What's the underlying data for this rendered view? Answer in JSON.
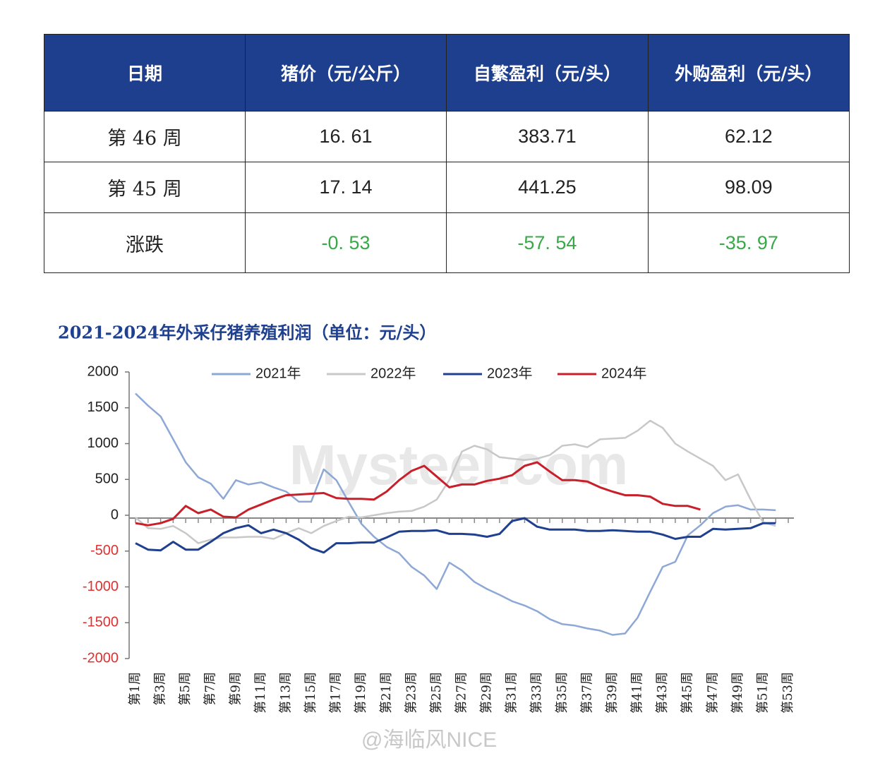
{
  "table": {
    "header": [
      "日期",
      "猪价（元/公斤）",
      "自繁盈利（元/头）",
      "外购盈利（元/头）"
    ],
    "rows": [
      [
        "第 46 周",
        "16. 61",
        "383.71",
        "62.12"
      ],
      [
        "第 45 周",
        "17. 14",
        "441.25",
        "98.09"
      ],
      [
        "涨跌",
        "-0. 53",
        "-57. 54",
        "-35. 97"
      ]
    ],
    "header_color": "#1e3e8e",
    "change_color": "#3aa84a"
  },
  "chart_data": {
    "type": "line",
    "title": "2021-2024年外采仔猪养殖利润（单位：元/头）",
    "categories": [
      "第1周",
      null,
      "第3周",
      null,
      "第5周",
      null,
      "第7周",
      null,
      "第9周",
      null,
      "第11周",
      null,
      "第13周",
      null,
      "第15周",
      null,
      "第17周",
      null,
      "第19周",
      null,
      "第21周",
      null,
      "第23周",
      null,
      "第25周",
      null,
      "第27周",
      null,
      "第29周",
      null,
      "第31周",
      null,
      "第33周",
      null,
      "第35周",
      null,
      "第37周",
      null,
      "第39周",
      null,
      "第41周",
      null,
      "第43周",
      null,
      "第45周",
      null,
      "第47周",
      null,
      "第49周",
      null,
      "第51周",
      null,
      "第53周"
    ],
    "series": [
      {
        "name": "2021年",
        "color": "#8ea8d6",
        "values": [
          1700,
          1530,
          1380,
          1060,
          740,
          530,
          440,
          230,
          490,
          430,
          460,
          390,
          330,
          190,
          190,
          640,
          490,
          180,
          -120,
          -300,
          -440,
          -530,
          -720,
          -840,
          -1030,
          -660,
          -770,
          -930,
          -1030,
          -1110,
          -1200,
          -1260,
          -1340,
          -1450,
          -1520,
          -1540,
          -1580,
          -1610,
          -1670,
          -1650,
          -1430,
          -1070,
          -720,
          -650,
          -280,
          -140,
          30,
          120,
          140,
          80,
          80,
          70,
          null
        ]
      },
      {
        "name": "2022年",
        "color": "#c8c8c8",
        "values": [
          -30,
          -180,
          -190,
          -150,
          -250,
          -390,
          -340,
          -310,
          -310,
          -300,
          -300,
          -330,
          -250,
          -180,
          -250,
          -150,
          -80,
          -20,
          -30,
          0,
          30,
          50,
          60,
          120,
          220,
          490,
          890,
          970,
          920,
          810,
          790,
          770,
          790,
          840,
          970,
          990,
          950,
          1060,
          1070,
          1080,
          1180,
          1320,
          1220,
          1000,
          890,
          790,
          690,
          490,
          570,
          220,
          -100,
          -150,
          null
        ]
      },
      {
        "name": "2023年",
        "color": "#1f3f8f",
        "values": [
          -390,
          -480,
          -490,
          -370,
          -480,
          -480,
          -370,
          -250,
          -180,
          -140,
          -250,
          -200,
          -250,
          -340,
          -460,
          -520,
          -390,
          -390,
          -380,
          -380,
          -310,
          -230,
          -220,
          -220,
          -210,
          -260,
          -260,
          -270,
          -300,
          -260,
          -80,
          -40,
          -160,
          -200,
          -200,
          -200,
          -220,
          -220,
          -210,
          -220,
          -230,
          -230,
          -270,
          -330,
          -300,
          -300,
          -190,
          -200,
          -190,
          -180,
          -110,
          -110,
          null
        ]
      },
      {
        "name": "2024年",
        "color": "#c8202a",
        "values": [
          -110,
          -140,
          -110,
          -50,
          130,
          30,
          80,
          -20,
          -30,
          80,
          150,
          220,
          280,
          290,
          300,
          310,
          240,
          230,
          230,
          220,
          330,
          490,
          620,
          690,
          540,
          390,
          430,
          430,
          480,
          510,
          560,
          690,
          740,
          610,
          490,
          490,
          470,
          390,
          330,
          280,
          280,
          260,
          160,
          130,
          130,
          80,
          null,
          null,
          null,
          null,
          null,
          null,
          null
        ]
      }
    ],
    "ylim": [
      -2000,
      2000
    ],
    "yticks": [
      -2000,
      -1500,
      -1000,
      -500,
      0,
      500,
      1000,
      1500,
      2000
    ],
    "negative_tick_color": "#e03030",
    "legend": "top",
    "watermarks": [
      "Mysteel.com",
      "@海临风NICE"
    ]
  }
}
